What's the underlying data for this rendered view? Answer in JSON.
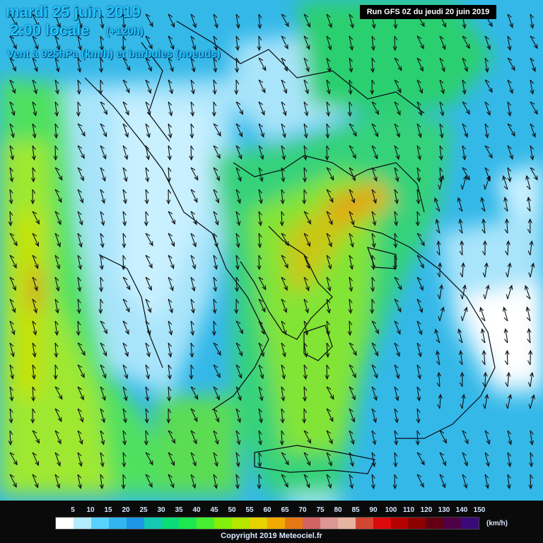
{
  "header": {
    "date": "mardi 25 juin 2019",
    "time": "2:00 locale",
    "offset": "(+120h)",
    "description": "Vent à 925hPa (km/h) et barbules (noeuds)"
  },
  "run_label": "Run GFS 0Z du jeudi 20 juin 2019",
  "legend": {
    "labels": [
      "5",
      "10",
      "15",
      "20",
      "25",
      "30",
      "35",
      "40",
      "45",
      "50",
      "55",
      "60",
      "65",
      "70",
      "75",
      "80",
      "85",
      "90",
      "100",
      "110",
      "120",
      "130",
      "140",
      "150"
    ],
    "colors": [
      "#ffffff",
      "#b4ecff",
      "#5ad2ff",
      "#32b4f0",
      "#1e96e6",
      "#14c8b4",
      "#0adc78",
      "#1ee650",
      "#46ee32",
      "#82f00a",
      "#b4e600",
      "#e6d200",
      "#f0aa00",
      "#e67814",
      "#d26464",
      "#dc9696",
      "#e6b4a0",
      "#d24632",
      "#dc0a0a",
      "#b40000",
      "#8c0000",
      "#640014",
      "#500046",
      "#3c0a78"
    ],
    "unit": "(km/h)"
  },
  "copyright": "Copyright 2019 Meteociel.fr",
  "icons": {
    "wind_barb": "wind-barb-icon",
    "wind_arrow": "wind-arrow-icon"
  }
}
